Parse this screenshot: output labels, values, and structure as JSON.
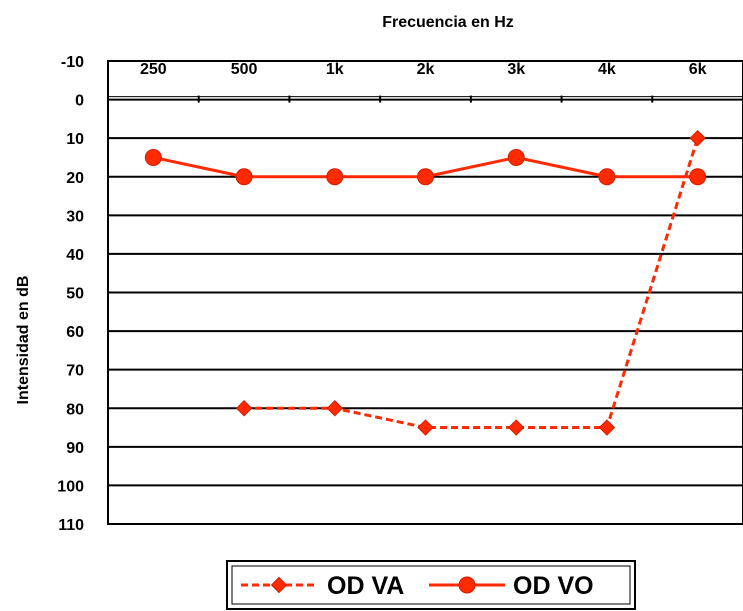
{
  "chart_data": {
    "type": "line",
    "title": "Frecuencia en Hz",
    "ylabel": "Intensidad en dB",
    "categories": [
      "250",
      "500",
      "1k",
      "2k",
      "3k",
      "4k",
      "6k"
    ],
    "y_ticks": [
      "-10",
      "0",
      "10",
      "20",
      "30",
      "40",
      "50",
      "60",
      "70",
      "80",
      "90",
      "100",
      "110"
    ],
    "ylim": [
      -10,
      110
    ],
    "y_inverted": true,
    "x_axis_position": "top",
    "grid": "horizontal",
    "legend_position": "bottom",
    "series": [
      {
        "name": "OD VA",
        "style": "dashed",
        "marker": "diamond",
        "color": "#ff2a00",
        "values": [
          null,
          80,
          80,
          85,
          85,
          85,
          10
        ]
      },
      {
        "name": "OD VO",
        "style": "solid",
        "marker": "circle",
        "color": "#ff2a00",
        "values": [
          15,
          20,
          20,
          20,
          15,
          20,
          20
        ]
      }
    ]
  }
}
